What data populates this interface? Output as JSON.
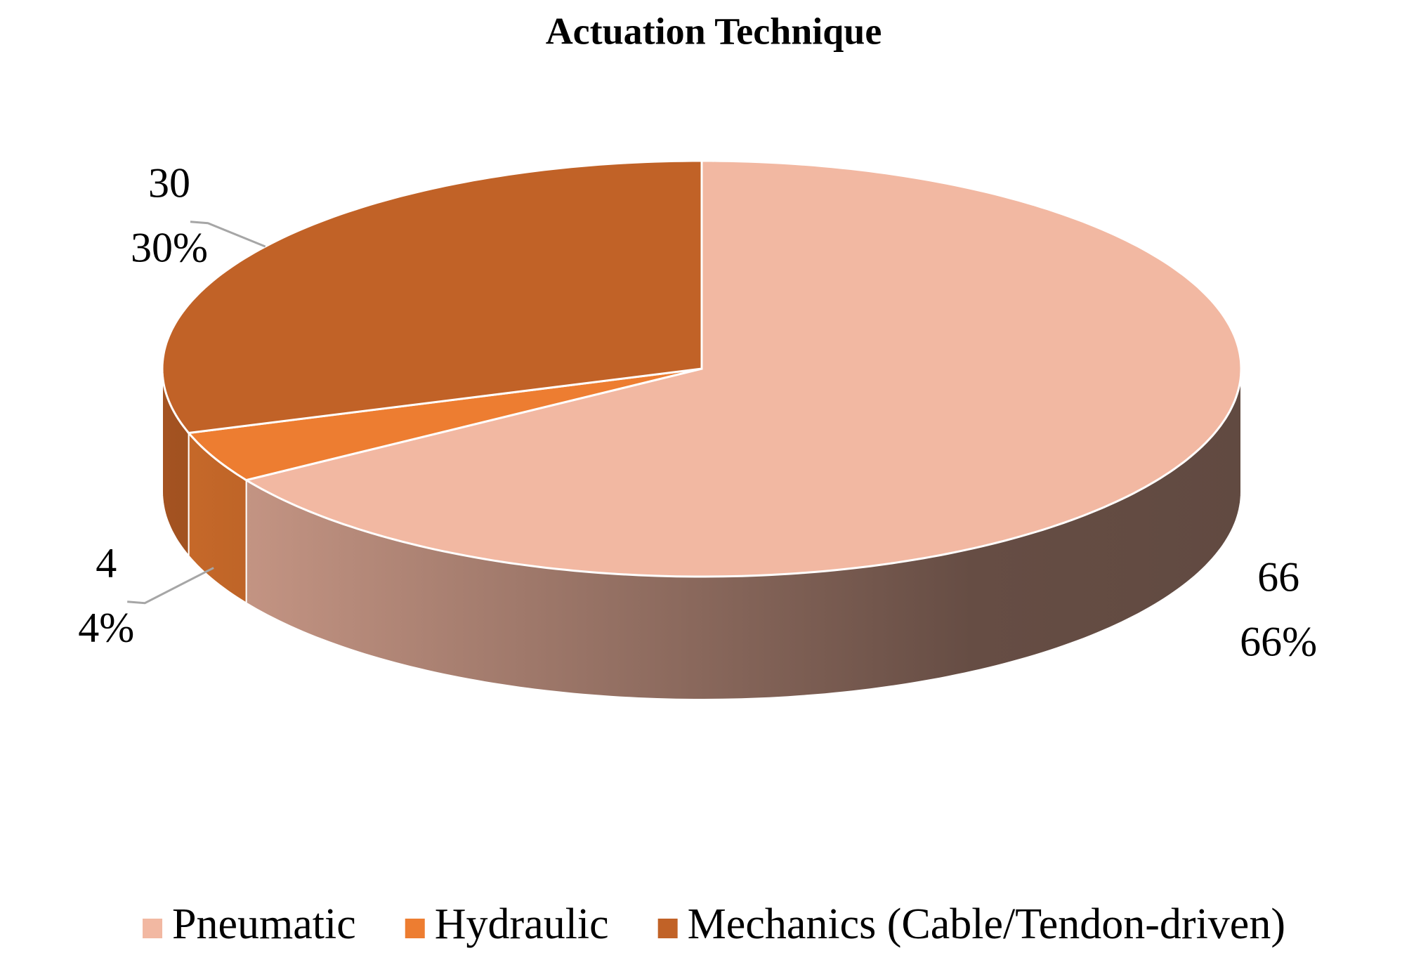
{
  "chart_data": {
    "type": "pie",
    "title": "Actuation Technique",
    "categories": [
      "Pneumatic",
      "Hydraulic",
      "Mechanics (Cable/Tendon-driven)"
    ],
    "values": [
      66,
      4,
      30
    ],
    "value_labels": [
      "66%",
      "4%",
      "30%"
    ],
    "colors": [
      "#f2b8a2",
      "#ed7d31",
      "#c16227"
    ],
    "legend": "bottom"
  }
}
